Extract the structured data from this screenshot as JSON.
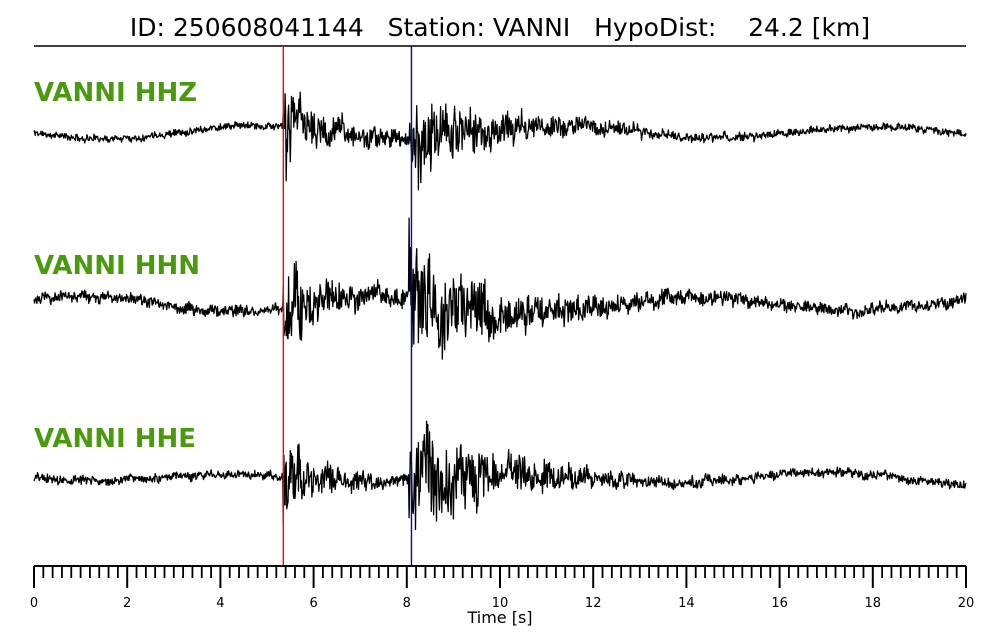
{
  "header": {
    "id_label": "ID:",
    "id_value": "250608041144",
    "station_label": "Station:",
    "station_value": "VANNI",
    "hypodist_label": "HypoDist:",
    "hypodist_value": "24.2",
    "hypodist_unit": "[km]"
  },
  "chart_data": {
    "type": "line",
    "title": "",
    "xlabel": "Time [s]",
    "xlim": [
      0,
      20
    ],
    "x_major_ticks": [
      0,
      2,
      4,
      6,
      8,
      10,
      12,
      14,
      16,
      18,
      20
    ],
    "x_minor_step": 0.2,
    "grid": false,
    "legend": "none",
    "label_color": "#4a9a0e",
    "p_pick": {
      "time": 5.35,
      "color": "#ff0000"
    },
    "s_pick": {
      "time": 8.1,
      "color": "#0000cc"
    },
    "series": [
      {
        "name": "VANNI HHZ",
        "p_amp": 0.8,
        "s_amp": 0.85,
        "noise_amp": 0.08,
        "seed": 11
      },
      {
        "name": "VANNI HHN",
        "p_amp": 0.6,
        "s_amp": 1.0,
        "noise_amp": 0.1,
        "seed": 23
      },
      {
        "name": "VANNI HHE",
        "p_amp": 0.55,
        "s_amp": 1.0,
        "noise_amp": 0.08,
        "seed": 37
      }
    ]
  }
}
